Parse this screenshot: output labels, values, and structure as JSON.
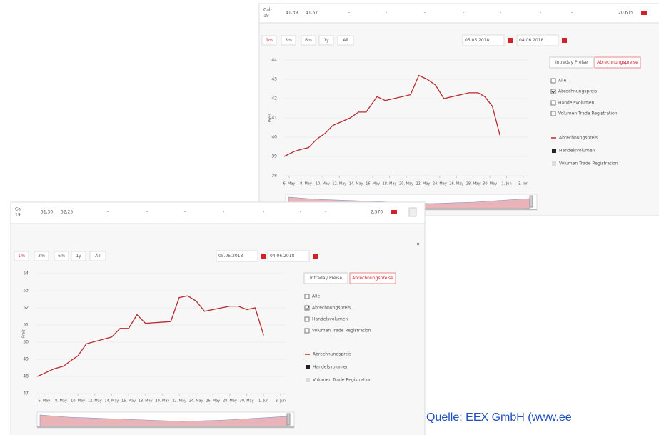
{
  "panels": [
    {
      "header": {
        "product": [
          "Cal-",
          "19"
        ],
        "cells": [
          "41,39",
          "41,67",
          "-",
          "-",
          "-",
          "-",
          "-",
          "-",
          "-",
          "20.615"
        ]
      },
      "ranges": [
        "1m",
        "3m",
        "6m",
        "1y",
        "All"
      ],
      "from": "05.05.2018",
      "to": "04.06.2018",
      "tabs": [
        "Intraday Preise",
        "Abrechnungspreise"
      ],
      "checkboxes": [
        {
          "label": "Alle",
          "checked": false
        },
        {
          "label": "Abrechnungspreis",
          "checked": true
        },
        {
          "label": "Handelsvolumen",
          "checked": false
        },
        {
          "label": "Volumen Trade Registration",
          "checked": false
        }
      ],
      "legend": [
        "Abrechnungspreis",
        "Handelsvolumen",
        "Volumen Trade Registration"
      ],
      "chart": {
        "type": "line",
        "y_label": "Preis",
        "color": "#b8292f",
        "x": [
          5.4,
          6.6,
          7.7,
          8.3,
          9.3,
          10.3,
          11.2,
          13.3,
          14.3,
          15.2,
          16.5,
          17.5,
          20.5,
          21.5,
          22.5,
          23.5,
          24.5,
          27.5,
          28.6,
          29.4,
          30.3,
          31.2
        ],
        "values": [
          39.0,
          39.26,
          39.4,
          39.45,
          39.9,
          40.2,
          40.6,
          41.0,
          41.3,
          41.3,
          42.1,
          41.9,
          42.2,
          43.2,
          43.0,
          42.7,
          42.0,
          42.3,
          42.3,
          42.1,
          41.6,
          40.1
        ],
        "xlim": [
          5.4,
          34.6
        ],
        "ylim": [
          38,
          44
        ],
        "yticks": [
          38,
          39,
          40,
          41,
          42,
          43,
          44
        ],
        "xticks": [
          {
            "value": 6,
            "label": "6. May"
          },
          {
            "value": 8,
            "label": "8. May"
          },
          {
            "value": 10,
            "label": "10. May"
          },
          {
            "value": 12,
            "label": "12. May"
          },
          {
            "value": 14,
            "label": "14. May"
          },
          {
            "value": 16,
            "label": "16. May"
          },
          {
            "value": 18,
            "label": "18. May"
          },
          {
            "value": 20,
            "label": "20. May"
          },
          {
            "value": 22,
            "label": "22. May"
          },
          {
            "value": 24,
            "label": "24. May"
          },
          {
            "value": 26,
            "label": "26. May"
          },
          {
            "value": 28,
            "label": "28. May"
          },
          {
            "value": 30,
            "label": "30. May"
          },
          {
            "value": 32,
            "label": "1. Jun"
          },
          {
            "value": 34,
            "label": "3. Jun"
          }
        ]
      }
    },
    {
      "header": {
        "product": [
          "Cal-",
          "19"
        ],
        "cells": [
          "51,30",
          "52,25",
          "-",
          "-",
          "-",
          "-",
          "-",
          "-",
          "-",
          "2,570"
        ]
      },
      "ranges": [
        "1m",
        "3m",
        "6m",
        "1y",
        "All"
      ],
      "from": "05.05.2018",
      "to": "04.06.2018",
      "tabs": [
        "Intraday Preise",
        "Abrechnungspreise"
      ],
      "checkboxes": [
        {
          "label": "Alle",
          "checked": false
        },
        {
          "label": "Abrechnungspreis",
          "checked": true
        },
        {
          "label": "Handelsvolumen",
          "checked": false
        },
        {
          "label": "Volumen Trade Registration",
          "checked": false
        }
      ],
      "legend": [
        "Abrechnungspreis",
        "Handelsvolumen",
        "Volumen Trade Registration"
      ],
      "chart": {
        "type": "line",
        "y_label": "Preis",
        "color": "#b8292f",
        "x": [
          5.2,
          7.2,
          8.3,
          9.1,
          10.0,
          11.0,
          14.0,
          15.0,
          16.0,
          17.0,
          18.0,
          21.0,
          22.0,
          23.0,
          24.0,
          25.0,
          28.0,
          29.0,
          30.0,
          31.0,
          32.0
        ],
        "values": [
          48.0,
          48.45,
          48.6,
          48.9,
          49.2,
          49.9,
          50.3,
          50.8,
          50.8,
          51.6,
          51.1,
          51.2,
          52.6,
          52.7,
          52.4,
          51.8,
          52.1,
          52.1,
          51.9,
          52.0,
          50.4
        ],
        "xlim": [
          5.0,
          34.6
        ],
        "ylim": [
          47,
          54
        ],
        "yticks": [
          47,
          48,
          49,
          50,
          51,
          52,
          53,
          54
        ],
        "xticks": [
          {
            "value": 6,
            "label": "6. May"
          },
          {
            "value": 8,
            "label": "8. May"
          },
          {
            "value": 10,
            "label": "10. May"
          },
          {
            "value": 12,
            "label": "12. May"
          },
          {
            "value": 14,
            "label": "14. May"
          },
          {
            "value": 16,
            "label": "16. May"
          },
          {
            "value": 18,
            "label": "18. May"
          },
          {
            "value": 20,
            "label": "20. May"
          },
          {
            "value": 22,
            "label": "22. May"
          },
          {
            "value": 24,
            "label": "24. May"
          },
          {
            "value": 26,
            "label": "26. May"
          },
          {
            "value": 28,
            "label": "28. May"
          },
          {
            "value": 30,
            "label": "30. May"
          },
          {
            "value": 32,
            "label": "1. Jun"
          },
          {
            "value": 34,
            "label": "3. Jun"
          }
        ]
      }
    }
  ],
  "source": "Quelle: EEX GmbH (www.ee"
}
